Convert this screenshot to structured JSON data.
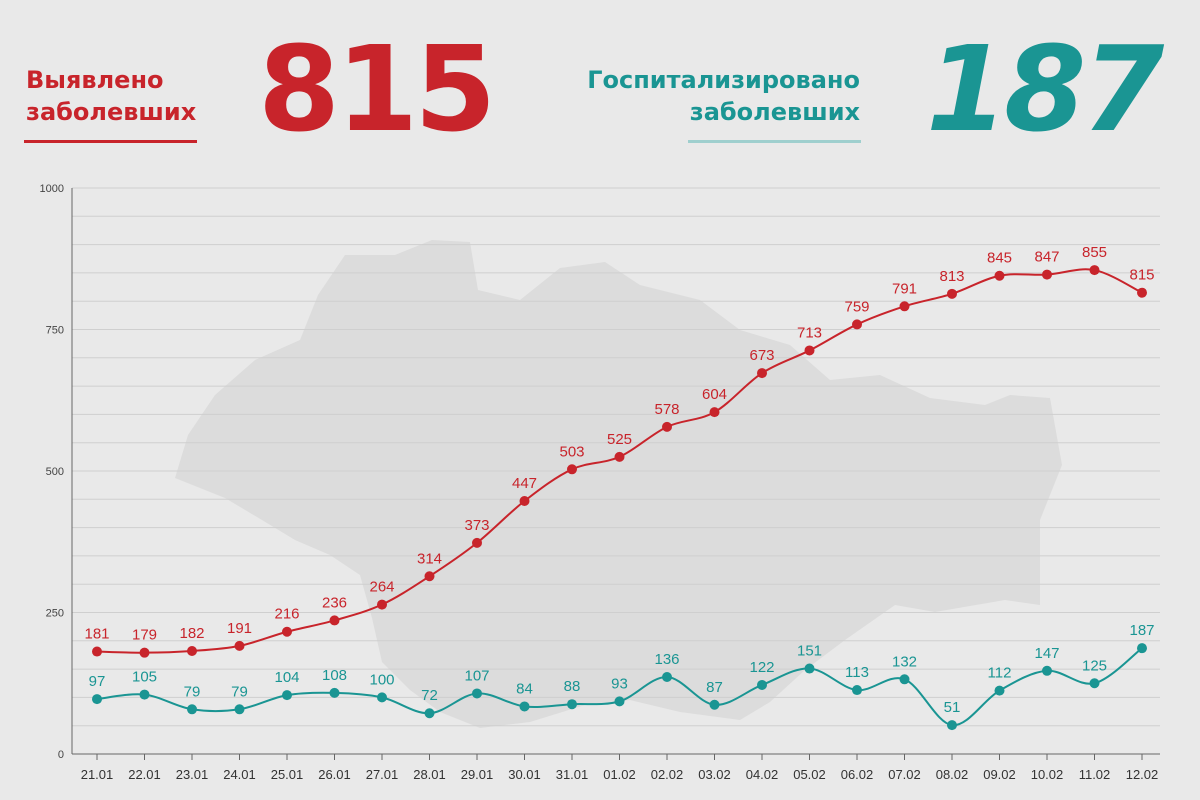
{
  "header": {
    "left": {
      "label_line1": "Выявлено",
      "label_line2": "заболевших",
      "value": "815"
    },
    "right": {
      "label_line1": "Госпитализировано",
      "label_line2": "заболевших",
      "value": "187"
    }
  },
  "colors": {
    "red": "#c8242b",
    "teal": "#1a9593",
    "teal_light": "#9fcfce",
    "grid": "#cfcfcf",
    "map": "#dcdcdc"
  },
  "chart_data": {
    "type": "line",
    "categories": [
      "21.01",
      "22.01",
      "23.01",
      "24.01",
      "25.01",
      "26.01",
      "27.01",
      "28.01",
      "29.01",
      "30.01",
      "31.01",
      "01.02",
      "02.02",
      "03.02",
      "04.02",
      "05.02",
      "06.02",
      "07.02",
      "08.02",
      "09.02",
      "10.02",
      "11.02",
      "12.02"
    ],
    "series": [
      {
        "values": [
          181,
          179,
          182,
          191,
          216,
          236,
          264,
          314,
          373,
          447,
          503,
          525,
          578,
          604,
          673,
          713,
          759,
          791,
          813,
          845,
          847,
          855,
          815
        ],
        "color": "#c8242b"
      },
      {
        "values": [
          97,
          105,
          79,
          79,
          104,
          108,
          100,
          72,
          107,
          84,
          88,
          93,
          136,
          87,
          122,
          151,
          113,
          132,
          51,
          112,
          147,
          125,
          187
        ],
        "color": "#1a9593"
      }
    ],
    "ylim": [
      0,
      1000
    ],
    "yticks": [
      "0",
      "250",
      "500",
      "750",
      "1000"
    ],
    "grid": true,
    "legend": "none"
  }
}
